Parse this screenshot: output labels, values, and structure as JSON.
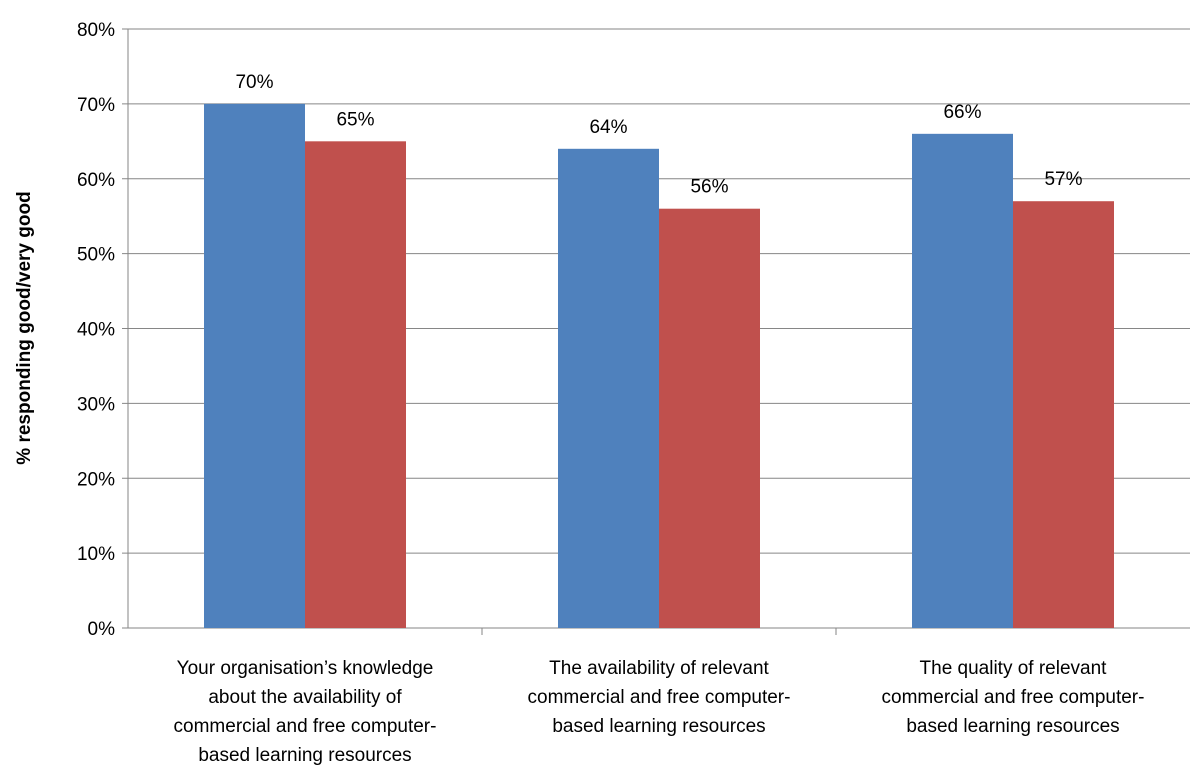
{
  "chart_data": {
    "type": "bar",
    "title": "",
    "xlabel": "",
    "ylabel": "% responding good/very good",
    "ylim": [
      0,
      80
    ],
    "y_tick_step": 10,
    "y_tick_labels": [
      "0%",
      "10%",
      "20%",
      "30%",
      "40%",
      "50%",
      "60%",
      "70%",
      "80%"
    ],
    "grid": true,
    "legend": "none",
    "categories": [
      [
        "Your organisation’s knowledge",
        "about the availability of",
        "commercial and free computer-",
        "based learning resources"
      ],
      [
        "The availability of relevant",
        "commercial and free computer-",
        "based learning resources"
      ],
      [
        "The quality of relevant",
        "commercial and free computer-",
        "based learning resources"
      ]
    ],
    "series": [
      {
        "color": "#4f81bd",
        "values": [
          70,
          64,
          66
        ],
        "data_labels": [
          "70%",
          "64%",
          "66%"
        ]
      },
      {
        "color": "#c0504d",
        "values": [
          65,
          56,
          57
        ],
        "data_labels": [
          "65%",
          "56%",
          "57%"
        ]
      }
    ]
  }
}
